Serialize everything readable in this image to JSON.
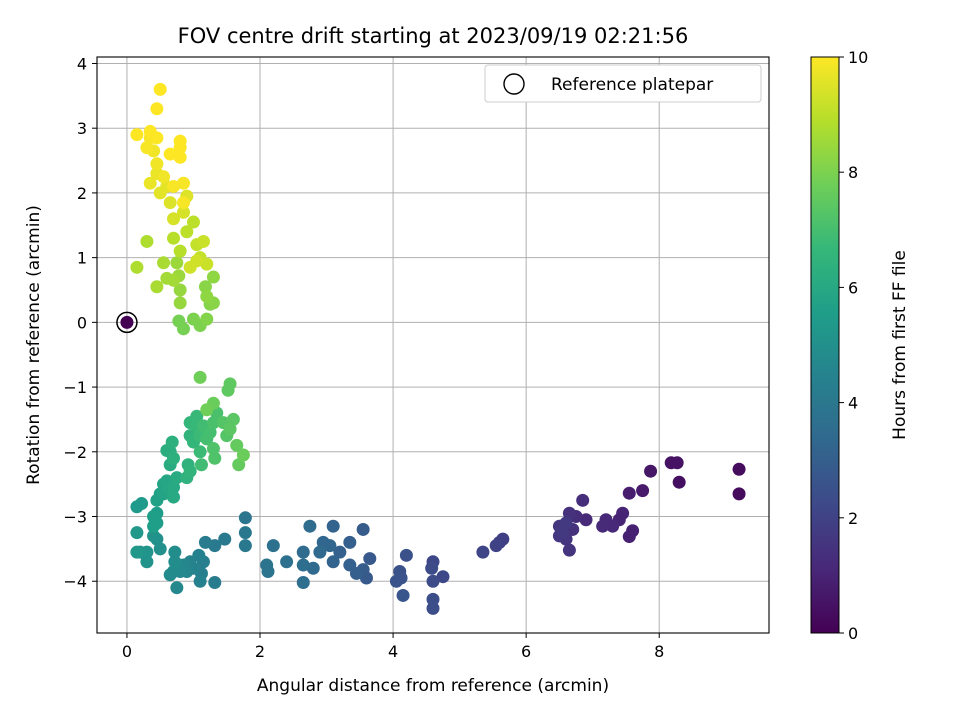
{
  "chart_data": {
    "type": "scatter",
    "title": "FOV centre drift starting at 2023/09/19 02:21:56",
    "xlabel": "Angular distance from reference (arcmin)",
    "ylabel": "Rotation from reference (arcmin)",
    "xlim": [
      -0.45,
      9.65
    ],
    "ylim": [
      -4.8,
      4.1
    ],
    "xticks": [
      0,
      2,
      4,
      6,
      8
    ],
    "yticks": [
      -4,
      -3,
      -2,
      -1,
      0,
      1,
      2,
      3,
      4
    ],
    "xtick_labels": [
      "0",
      "2",
      "4",
      "6",
      "8"
    ],
    "ytick_labels": [
      "−4",
      "−3",
      "−2",
      "−1",
      "0",
      "1",
      "2",
      "3",
      "4"
    ],
    "grid": true,
    "colormap": "viridis",
    "colors": {
      "grid": "#b0b0b0",
      "reference_marker_edge": "#000000",
      "viridis": [
        "#440154",
        "#482878",
        "#3e4989",
        "#31688e",
        "#26828e",
        "#1f9e89",
        "#35b779",
        "#6ece58",
        "#b5de2b",
        "#fde725"
      ]
    },
    "colorbar": {
      "label": "Hours from first FF file",
      "range": [
        0,
        10
      ],
      "ticks": [
        0,
        2,
        4,
        6,
        8,
        10
      ],
      "tick_labels": [
        "0",
        "2",
        "4",
        "6",
        "8",
        "10"
      ]
    },
    "legend": {
      "placement": "top-right",
      "entries": [
        {
          "label": "Reference platepar",
          "marker": "open-circle"
        }
      ]
    },
    "reference_point": {
      "x": 0,
      "y": 0
    },
    "points": [
      [
        0.0,
        0.0,
        0.0
      ],
      [
        9.2,
        -2.27,
        0.3
      ],
      [
        9.2,
        -2.65,
        0.3
      ],
      [
        8.3,
        -2.47,
        0.4
      ],
      [
        8.18,
        -2.17,
        0.5
      ],
      [
        8.27,
        -2.17,
        0.5
      ],
      [
        7.87,
        -2.3,
        0.6
      ],
      [
        7.75,
        -2.6,
        0.7
      ],
      [
        7.55,
        -2.64,
        0.8
      ],
      [
        7.6,
        -3.22,
        0.9
      ],
      [
        7.55,
        -3.31,
        0.9
      ],
      [
        7.45,
        -2.95,
        1.0
      ],
      [
        7.4,
        -3.05,
        1.0
      ],
      [
        7.3,
        -3.15,
        1.1
      ],
      [
        7.2,
        -3.05,
        1.1
      ],
      [
        7.15,
        -3.15,
        1.2
      ],
      [
        6.9,
        -3.05,
        1.2
      ],
      [
        6.85,
        -2.75,
        1.3
      ],
      [
        6.75,
        -3.0,
        1.3
      ],
      [
        6.65,
        -2.95,
        1.4
      ],
      [
        6.7,
        -3.2,
        1.4
      ],
      [
        6.6,
        -3.35,
        1.5
      ],
      [
        6.65,
        -3.52,
        1.5
      ],
      [
        6.5,
        -3.15,
        1.6
      ],
      [
        6.5,
        -3.3,
        1.6
      ],
      [
        6.55,
        -3.25,
        1.7
      ],
      [
        6.6,
        -3.1,
        1.7
      ],
      [
        5.65,
        -3.35,
        1.9
      ],
      [
        5.6,
        -3.4,
        1.9
      ],
      [
        5.55,
        -3.45,
        2.0
      ],
      [
        5.35,
        -3.55,
        2.1
      ],
      [
        4.75,
        -3.93,
        2.2
      ],
      [
        4.6,
        -3.7,
        2.2
      ],
      [
        4.6,
        -4.0,
        2.3
      ],
      [
        4.58,
        -3.8,
        2.3
      ],
      [
        4.6,
        -4.28,
        2.4
      ],
      [
        4.6,
        -4.42,
        2.4
      ],
      [
        4.2,
        -3.6,
        2.5
      ],
      [
        4.1,
        -3.85,
        2.5
      ],
      [
        4.12,
        -3.95,
        2.6
      ],
      [
        4.05,
        -4.0,
        2.6
      ],
      [
        4.15,
        -4.22,
        2.7
      ],
      [
        3.65,
        -3.65,
        2.8
      ],
      [
        3.6,
        -3.95,
        2.8
      ],
      [
        3.55,
        -3.82,
        2.9
      ],
      [
        3.55,
        -3.2,
        2.9
      ],
      [
        3.45,
        -3.88,
        3.0
      ],
      [
        3.35,
        -3.4,
        3.0
      ],
      [
        3.35,
        -3.75,
        3.1
      ],
      [
        3.2,
        -3.55,
        3.1
      ],
      [
        3.1,
        -3.7,
        3.2
      ],
      [
        3.1,
        -3.15,
        3.2
      ],
      [
        3.05,
        -3.45,
        3.3
      ],
      [
        2.95,
        -3.4,
        3.3
      ],
      [
        2.9,
        -3.55,
        3.4
      ],
      [
        2.8,
        -3.8,
        3.4
      ],
      [
        2.75,
        -3.15,
        3.5
      ],
      [
        2.65,
        -3.55,
        3.5
      ],
      [
        2.65,
        -3.75,
        3.6
      ],
      [
        2.65,
        -4.02,
        3.6
      ],
      [
        2.4,
        -3.7,
        3.7
      ],
      [
        2.2,
        -3.45,
        3.7
      ],
      [
        2.12,
        -3.85,
        3.8
      ],
      [
        2.1,
        -3.75,
        3.8
      ],
      [
        1.78,
        -3.02,
        3.9
      ],
      [
        1.78,
        -3.25,
        4.0
      ],
      [
        1.78,
        -3.45,
        4.0
      ],
      [
        1.47,
        -3.35,
        4.1
      ],
      [
        1.32,
        -3.45,
        4.1
      ],
      [
        1.32,
        -4.02,
        4.2
      ],
      [
        1.18,
        -3.4,
        4.2
      ],
      [
        1.15,
        -3.7,
        4.3
      ],
      [
        1.12,
        -3.88,
        4.3
      ],
      [
        1.1,
        -4.0,
        4.4
      ],
      [
        1.08,
        -3.6,
        4.4
      ],
      [
        1.0,
        -3.8,
        4.5
      ],
      [
        0.95,
        -3.7,
        4.5
      ],
      [
        0.9,
        -3.85,
        4.6
      ],
      [
        0.85,
        -3.75,
        4.6
      ],
      [
        0.8,
        -3.85,
        4.7
      ],
      [
        0.75,
        -4.1,
        4.7
      ],
      [
        0.7,
        -3.85,
        4.8
      ],
      [
        0.65,
        -3.9,
        4.8
      ],
      [
        0.72,
        -3.55,
        4.9
      ],
      [
        0.72,
        -3.7,
        4.9
      ],
      [
        0.5,
        -3.5,
        5.0
      ],
      [
        0.45,
        -3.35,
        5.0
      ],
      [
        0.4,
        -3.3,
        5.1
      ],
      [
        0.3,
        -3.7,
        5.1
      ],
      [
        0.3,
        -3.55,
        5.2
      ],
      [
        0.2,
        -3.55,
        5.2
      ],
      [
        0.15,
        -3.25,
        5.3
      ],
      [
        0.15,
        -3.55,
        5.3
      ],
      [
        0.15,
        -2.85,
        5.4
      ],
      [
        0.22,
        -2.8,
        5.4
      ],
      [
        0.45,
        -3.1,
        5.5
      ],
      [
        0.45,
        -2.95,
        5.5
      ],
      [
        0.4,
        -3.15,
        5.6
      ],
      [
        0.4,
        -3.0,
        5.6
      ],
      [
        0.45,
        -2.75,
        5.7
      ],
      [
        0.5,
        -2.65,
        5.7
      ],
      [
        0.55,
        -2.5,
        5.8
      ],
      [
        0.55,
        -2.65,
        5.8
      ],
      [
        0.6,
        -2.45,
        5.9
      ],
      [
        0.62,
        -2.55,
        5.9
      ],
      [
        0.7,
        -2.55,
        6.0
      ],
      [
        0.7,
        -2.7,
        6.0
      ],
      [
        0.75,
        -2.4,
        6.1
      ],
      [
        0.65,
        -2.2,
        6.1
      ],
      [
        0.65,
        -2.0,
        6.2
      ],
      [
        0.6,
        -1.98,
        6.2
      ],
      [
        0.68,
        -1.85,
        6.3
      ],
      [
        0.7,
        -2.1,
        6.3
      ],
      [
        0.9,
        -2.4,
        6.4
      ],
      [
        0.92,
        -2.2,
        6.4
      ],
      [
        0.95,
        -2.3,
        6.5
      ],
      [
        0.95,
        -1.75,
        6.5
      ],
      [
        0.95,
        -1.55,
        6.6
      ],
      [
        1.0,
        -1.85,
        6.6
      ],
      [
        1.05,
        -1.6,
        6.7
      ],
      [
        1.05,
        -1.45,
        6.7
      ],
      [
        1.1,
        -1.75,
        6.8
      ],
      [
        1.1,
        -2.0,
        6.8
      ],
      [
        1.12,
        -2.2,
        6.9
      ],
      [
        1.15,
        -1.6,
        6.9
      ],
      [
        1.2,
        -1.8,
        7.0
      ],
      [
        1.25,
        -1.7,
        7.0
      ],
      [
        1.3,
        -1.55,
        7.1
      ],
      [
        1.35,
        -1.4,
        7.1
      ],
      [
        1.3,
        -1.95,
        7.2
      ],
      [
        1.32,
        -2.1,
        7.2
      ],
      [
        1.45,
        -1.55,
        7.3
      ],
      [
        1.5,
        -1.75,
        7.3
      ],
      [
        1.6,
        -1.5,
        7.4
      ],
      [
        1.55,
        -1.65,
        7.4
      ],
      [
        1.52,
        -1.05,
        7.5
      ],
      [
        1.55,
        -0.95,
        7.5
      ],
      [
        1.68,
        -2.2,
        7.6
      ],
      [
        1.65,
        -1.9,
        7.6
      ],
      [
        1.75,
        -2.05,
        7.7
      ],
      [
        1.3,
        -1.25,
        7.7
      ],
      [
        1.2,
        -1.35,
        7.8
      ],
      [
        1.1,
        -0.85,
        7.8
      ],
      [
        0.85,
        -0.1,
        7.9
      ],
      [
        0.78,
        0.02,
        7.9
      ],
      [
        1.0,
        0.05,
        8.0
      ],
      [
        1.1,
        -0.05,
        8.0
      ],
      [
        1.2,
        0.05,
        8.1
      ],
      [
        1.25,
        0.28,
        8.1
      ],
      [
        1.3,
        0.3,
        8.2
      ],
      [
        1.18,
        0.55,
        8.2
      ],
      [
        1.2,
        0.4,
        8.3
      ],
      [
        1.3,
        0.7,
        8.3
      ],
      [
        0.8,
        0.3,
        8.4
      ],
      [
        0.8,
        0.5,
        8.4
      ],
      [
        0.78,
        0.72,
        8.5
      ],
      [
        0.75,
        0.92,
        8.5
      ],
      [
        0.7,
        0.65,
        8.6
      ],
      [
        0.6,
        0.68,
        8.6
      ],
      [
        0.55,
        0.92,
        8.7
      ],
      [
        0.45,
        0.55,
        8.7
      ],
      [
        0.3,
        1.25,
        8.8
      ],
      [
        0.15,
        0.85,
        8.8
      ],
      [
        0.7,
        1.3,
        8.9
      ],
      [
        0.8,
        1.1,
        8.9
      ],
      [
        0.9,
        1.4,
        9.0
      ],
      [
        1.0,
        1.55,
        9.0
      ],
      [
        1.05,
        1.2,
        9.1
      ],
      [
        1.1,
        1.0,
        9.1
      ],
      [
        1.15,
        1.25,
        9.2
      ],
      [
        1.2,
        0.9,
        9.2
      ],
      [
        1.05,
        0.95,
        9.3
      ],
      [
        0.95,
        0.85,
        9.3
      ],
      [
        0.7,
        1.6,
        9.4
      ],
      [
        0.85,
        1.7,
        9.4
      ],
      [
        0.9,
        1.95,
        9.5
      ],
      [
        0.65,
        1.85,
        9.5
      ],
      [
        0.6,
        2.1,
        9.6
      ],
      [
        0.5,
        2.0,
        9.6
      ],
      [
        0.35,
        2.15,
        9.7
      ],
      [
        0.45,
        2.3,
        9.7
      ],
      [
        0.45,
        2.45,
        9.8
      ],
      [
        0.4,
        2.65,
        9.8
      ],
      [
        0.55,
        2.25,
        9.8
      ],
      [
        0.7,
        2.1,
        9.9
      ],
      [
        0.85,
        2.15,
        9.9
      ],
      [
        0.85,
        1.85,
        9.9
      ],
      [
        0.3,
        2.7,
        9.9
      ],
      [
        0.35,
        2.85,
        9.9
      ],
      [
        0.45,
        2.85,
        10.0
      ],
      [
        0.35,
        2.95,
        10.0
      ],
      [
        0.15,
        2.9,
        10.0
      ],
      [
        0.8,
        2.8,
        10.0
      ],
      [
        0.8,
        2.7,
        10.0
      ],
      [
        0.8,
        2.55,
        10.0
      ],
      [
        0.65,
        2.6,
        10.0
      ],
      [
        0.45,
        3.3,
        10.0
      ],
      [
        0.5,
        3.6,
        10.0
      ]
    ]
  }
}
